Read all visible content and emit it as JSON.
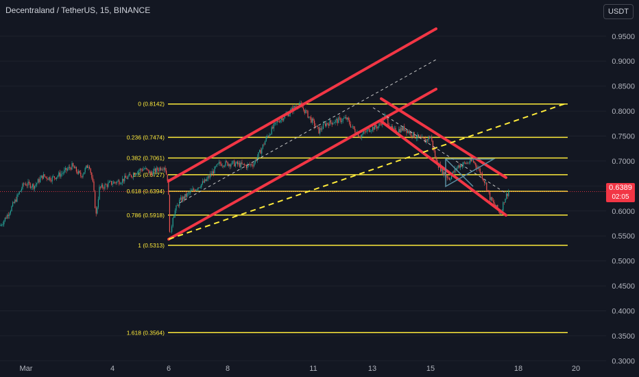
{
  "header": {
    "title": "Decentraland / TetherUS, 15, BINANCE",
    "currency": "USDT"
  },
  "last_price": {
    "value": "0.6389",
    "countdown": "02:05",
    "color": "#f23645"
  },
  "colors": {
    "background": "#131722",
    "fib": "#ffeb3b",
    "channel": "#f23645",
    "dashed_white": "#c8c8c8",
    "triangle": "#5b8fa3",
    "candle_up": "#26a69a",
    "candle_down": "#ef5350"
  },
  "chart_data": {
    "type": "line",
    "y_axis": {
      "ticks": [
        "0.9500",
        "0.9000",
        "0.8500",
        "0.8000",
        "0.7500",
        "0.7000",
        "0.6500",
        "0.6000",
        "0.5500",
        "0.5000",
        "0.4500",
        "0.4000",
        "0.3500",
        "0.3000"
      ],
      "range": [
        0.295,
        0.995
      ]
    },
    "x_axis": {
      "ticks": [
        "Mar",
        "4",
        "6",
        "8",
        "11",
        "13",
        "15",
        "18",
        "20"
      ]
    },
    "fib_levels": [
      {
        "label": "0 (0.8142)",
        "value": 0.8142
      },
      {
        "label": "0.236 (0.7474)",
        "value": 0.7474
      },
      {
        "label": "0.382 (0.7061)",
        "value": 0.7061
      },
      {
        "label": "0.5 (0.6727)",
        "value": 0.6727
      },
      {
        "label": "0.618 (0.6394)",
        "value": 0.6394
      },
      {
        "label": "0.786 (0.5918)",
        "value": 0.5918
      },
      {
        "label": "1 (0.5313)",
        "value": 0.5313
      },
      {
        "label": "1.618 (0.3564)",
        "value": 0.3564
      }
    ],
    "price_path": [
      [
        0,
        0.57
      ],
      [
        10,
        0.59
      ],
      [
        22,
        0.62
      ],
      [
        35,
        0.655
      ],
      [
        50,
        0.65
      ],
      [
        62,
        0.67
      ],
      [
        75,
        0.665
      ],
      [
        90,
        0.675
      ],
      [
        105,
        0.69
      ],
      [
        118,
        0.67
      ],
      [
        130,
        0.695
      ],
      [
        136,
        0.65
      ],
      [
        140,
        0.59
      ],
      [
        145,
        0.645
      ],
      [
        160,
        0.655
      ],
      [
        175,
        0.66
      ],
      [
        190,
        0.67
      ],
      [
        200,
        0.68
      ],
      [
        210,
        0.685
      ],
      [
        220,
        0.675
      ],
      [
        232,
        0.685
      ],
      [
        240,
        0.69
      ],
      [
        245,
        0.66
      ],
      [
        248,
        0.54
      ],
      [
        252,
        0.59
      ],
      [
        262,
        0.62
      ],
      [
        280,
        0.64
      ],
      [
        300,
        0.66
      ],
      [
        320,
        0.695
      ],
      [
        340,
        0.695
      ],
      [
        360,
        0.69
      ],
      [
        370,
        0.695
      ],
      [
        380,
        0.72
      ],
      [
        390,
        0.75
      ],
      [
        405,
        0.78
      ],
      [
        420,
        0.795
      ],
      [
        435,
        0.815
      ],
      [
        445,
        0.8
      ],
      [
        455,
        0.78
      ],
      [
        465,
        0.76
      ],
      [
        475,
        0.775
      ],
      [
        490,
        0.78
      ],
      [
        505,
        0.785
      ],
      [
        515,
        0.765
      ],
      [
        525,
        0.75
      ],
      [
        540,
        0.765
      ],
      [
        552,
        0.77
      ],
      [
        562,
        0.79
      ],
      [
        572,
        0.76
      ],
      [
        590,
        0.765
      ],
      [
        605,
        0.75
      ],
      [
        620,
        0.74
      ],
      [
        628,
        0.75
      ],
      [
        636,
        0.7
      ],
      [
        645,
        0.68
      ],
      [
        655,
        0.665
      ],
      [
        668,
        0.69
      ],
      [
        678,
        0.695
      ],
      [
        690,
        0.7
      ],
      [
        700,
        0.68
      ],
      [
        708,
        0.655
      ],
      [
        715,
        0.625
      ],
      [
        722,
        0.61
      ],
      [
        730,
        0.595
      ],
      [
        736,
        0.625
      ],
      [
        742,
        0.64
      ]
    ]
  }
}
